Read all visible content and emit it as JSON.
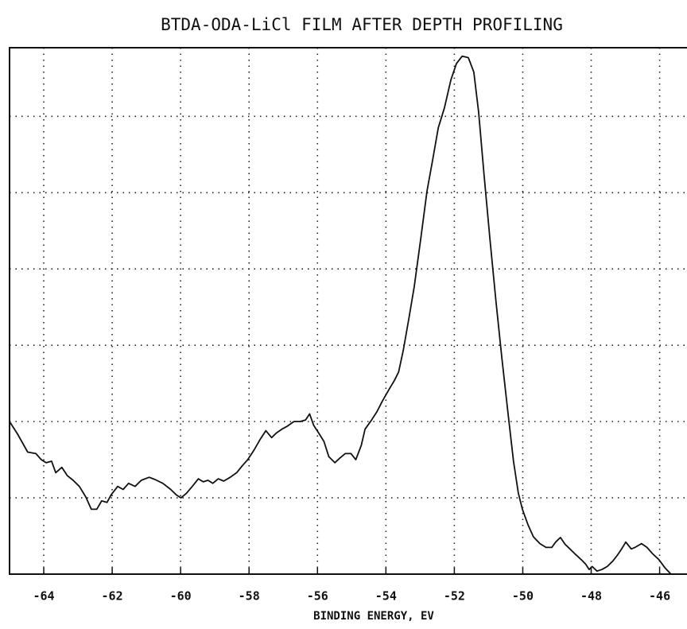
{
  "chart_data": {
    "type": "line",
    "title": "BTDA-ODA-LiCl FILM AFTER DEPTH PROFILING",
    "x_label": "BINDING ENERGY, EV",
    "xlim": [
      -65,
      -45.2
    ],
    "ylim": [
      0,
      6.9
    ],
    "xticks": [
      -64,
      -62,
      -60,
      -58,
      -56,
      -54,
      -52,
      -50,
      -48,
      -46
    ],
    "yticks": [
      1,
      2,
      3,
      4,
      5,
      6
    ],
    "grid": true,
    "series": [
      {
        "color": "#111111",
        "x": [
          -65.0,
          -64.77,
          -64.47,
          -64.23,
          -64.07,
          -63.93,
          -63.77,
          -63.65,
          -63.47,
          -63.31,
          -63.14,
          -62.96,
          -62.77,
          -62.61,
          -62.45,
          -62.31,
          -62.15,
          -62.03,
          -61.84,
          -61.68,
          -61.52,
          -61.33,
          -61.15,
          -60.92,
          -60.75,
          -60.52,
          -60.29,
          -60.13,
          -59.99,
          -59.83,
          -59.66,
          -59.48,
          -59.34,
          -59.2,
          -59.06,
          -58.9,
          -58.74,
          -58.55,
          -58.36,
          -58.2,
          -58.04,
          -57.85,
          -57.67,
          -57.51,
          -57.34,
          -57.2,
          -57.04,
          -56.88,
          -56.69,
          -56.51,
          -56.35,
          -56.23,
          -56.11,
          -55.95,
          -55.81,
          -55.67,
          -55.49,
          -55.35,
          -55.19,
          -55.02,
          -54.88,
          -54.72,
          -54.61,
          -54.42,
          -54.26,
          -54.1,
          -53.91,
          -53.75,
          -53.63,
          -53.49,
          -53.33,
          -53.17,
          -52.98,
          -52.8,
          -52.63,
          -52.47,
          -52.29,
          -52.1,
          -51.94,
          -51.77,
          -51.59,
          -51.43,
          -51.29,
          -51.13,
          -50.96,
          -50.78,
          -50.61,
          -50.43,
          -50.27,
          -50.13,
          -50.01,
          -49.85,
          -49.69,
          -49.5,
          -49.32,
          -49.15,
          -49.04,
          -48.9,
          -48.76,
          -48.62,
          -48.46,
          -48.29,
          -48.16,
          -48.06,
          -47.97,
          -47.83,
          -47.69,
          -47.53,
          -47.37,
          -47.23,
          -47.11,
          -46.99,
          -46.83,
          -46.72,
          -46.53,
          -46.37,
          -46.21,
          -46.02,
          -45.84,
          -45.67
        ],
        "values": [
          2.0,
          1.84,
          1.6,
          1.58,
          1.5,
          1.46,
          1.48,
          1.33,
          1.4,
          1.29,
          1.23,
          1.15,
          1.01,
          0.85,
          0.85,
          0.96,
          0.94,
          1.04,
          1.15,
          1.11,
          1.19,
          1.15,
          1.23,
          1.27,
          1.24,
          1.19,
          1.11,
          1.04,
          1.0,
          1.06,
          1.15,
          1.25,
          1.21,
          1.23,
          1.19,
          1.25,
          1.22,
          1.27,
          1.33,
          1.42,
          1.5,
          1.63,
          1.77,
          1.88,
          1.79,
          1.85,
          1.9,
          1.94,
          2.0,
          2.0,
          2.02,
          2.1,
          1.95,
          1.84,
          1.74,
          1.54,
          1.46,
          1.52,
          1.58,
          1.58,
          1.5,
          1.69,
          1.9,
          2.02,
          2.13,
          2.27,
          2.42,
          2.54,
          2.65,
          2.94,
          3.35,
          3.77,
          4.4,
          5.02,
          5.44,
          5.85,
          6.11,
          6.48,
          6.69,
          6.79,
          6.77,
          6.58,
          6.06,
          5.23,
          4.4,
          3.56,
          2.83,
          2.1,
          1.48,
          1.06,
          0.85,
          0.65,
          0.49,
          0.4,
          0.35,
          0.35,
          0.42,
          0.48,
          0.39,
          0.33,
          0.26,
          0.19,
          0.13,
          0.06,
          0.1,
          0.04,
          0.06,
          0.1,
          0.17,
          0.25,
          0.33,
          0.42,
          0.33,
          0.35,
          0.4,
          0.35,
          0.27,
          0.19,
          0.08,
          0.0
        ]
      }
    ]
  }
}
